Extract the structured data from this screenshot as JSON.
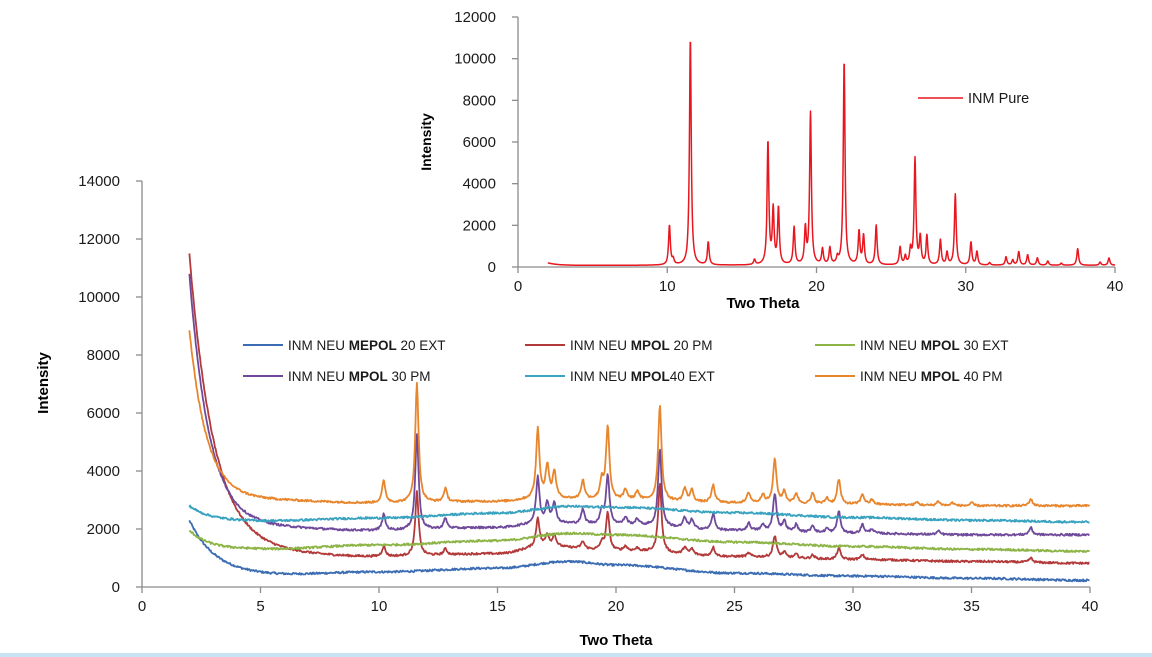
{
  "chart_data": [
    {
      "id": "main",
      "type": "line",
      "title": "",
      "xlabel": "Two Theta",
      "ylabel": "Intensity",
      "xlim": [
        0,
        40
      ],
      "ylim": [
        0,
        14000
      ],
      "xticks": [
        0,
        5,
        10,
        15,
        20,
        25,
        30,
        35,
        40
      ],
      "yticks": [
        0,
        2000,
        4000,
        6000,
        8000,
        10000,
        12000,
        14000
      ],
      "grid": false,
      "legend_placement": "top-center (3 columns, 2 rows)",
      "x_start": 2,
      "x_end": 40,
      "series": [
        {
          "name": "INM NEU MEPOL 20 EXT",
          "name_plain": "INM NEU ",
          "name_bold": "MEPOL",
          "name_tail": " 20 EXT",
          "color": "#3c6db3",
          "start_value": 2300,
          "decay_amplitude": 1900,
          "decay_rate": 1.1,
          "baseline_points": [
            [
              2,
              400
            ],
            [
              5,
              400
            ],
            [
              10,
              520
            ],
            [
              15,
              650
            ],
            [
              18,
              880
            ],
            [
              20,
              760
            ],
            [
              25,
              480
            ],
            [
              30,
              380
            ],
            [
              35,
              300
            ],
            [
              40,
              230
            ]
          ],
          "peaks": []
        },
        {
          "name": "INM NEU MPOL 20 PM",
          "name_plain": "INM NEU ",
          "name_bold": "MPOL",
          "name_tail": " 20 PM",
          "color": "#b33a3a",
          "start_value": 11500,
          "decay_amplitude": 10400,
          "decay_rate": 1.05,
          "baseline_points": [
            [
              2,
              1100
            ],
            [
              5,
              1150
            ],
            [
              10,
              1050
            ],
            [
              15,
              1150
            ],
            [
              17,
              1400
            ],
            [
              20,
              1250
            ],
            [
              25,
              1050
            ],
            [
              30,
              950
            ],
            [
              35,
              880
            ],
            [
              40,
              820
            ]
          ],
          "peaks": [
            [
              10.2,
              350
            ],
            [
              11.6,
              2200
            ],
            [
              12.8,
              200
            ],
            [
              16.7,
              1000
            ],
            [
              17.1,
              400
            ],
            [
              17.4,
              400
            ],
            [
              18.6,
              250
            ],
            [
              19.4,
              250
            ],
            [
              19.65,
              1300
            ],
            [
              20.4,
              150
            ],
            [
              20.9,
              100
            ],
            [
              21.85,
              2400
            ],
            [
              22.9,
              250
            ],
            [
              23.2,
              200
            ],
            [
              24.1,
              300
            ],
            [
              25.6,
              120
            ],
            [
              26.7,
              750
            ],
            [
              27.1,
              180
            ],
            [
              27.6,
              130
            ],
            [
              28.3,
              120
            ],
            [
              29.4,
              380
            ],
            [
              30.4,
              160
            ],
            [
              37.5,
              150
            ]
          ]
        },
        {
          "name": "INM NEU MPOL 30 EXT",
          "name_plain": "INM NEU ",
          "name_bold": "MPOL",
          "name_tail": " 30 EXT",
          "color": "#8db447",
          "start_value": 1900,
          "decay_amplitude": 700,
          "decay_rate": 0.9,
          "baseline_points": [
            [
              2,
              1250
            ],
            [
              5,
              1300
            ],
            [
              10,
              1450
            ],
            [
              15,
              1600
            ],
            [
              18,
              1850
            ],
            [
              20,
              1800
            ],
            [
              25,
              1550
            ],
            [
              30,
              1400
            ],
            [
              35,
              1300
            ],
            [
              40,
              1230
            ]
          ],
          "peaks": []
        },
        {
          "name": "INM NEU MPOL 30 PM",
          "name_plain": "INM NEU ",
          "name_bold": "MPOL",
          "name_tail": " 30 PM",
          "color": "#6f4a9a",
          "start_value": 10800,
          "decay_amplitude": 8800,
          "decay_rate": 0.85,
          "baseline_points": [
            [
              2,
              2000
            ],
            [
              5,
              2050
            ],
            [
              10,
              1950
            ],
            [
              15,
              2050
            ],
            [
              17,
              2200
            ],
            [
              20,
              2150
            ],
            [
              25,
              1950
            ],
            [
              30,
              1850
            ],
            [
              35,
              1800
            ],
            [
              40,
              1800
            ]
          ],
          "peaks": [
            [
              10.2,
              550
            ],
            [
              11.6,
              3300
            ],
            [
              12.8,
              350
            ],
            [
              16.7,
              1600
            ],
            [
              17.1,
              700
            ],
            [
              17.4,
              700
            ],
            [
              18.6,
              500
            ],
            [
              19.4,
              450
            ],
            [
              19.65,
              1700
            ],
            [
              20.4,
              250
            ],
            [
              20.9,
              200
            ],
            [
              21.85,
              2700
            ],
            [
              22.9,
              350
            ],
            [
              23.2,
              300
            ],
            [
              24.1,
              550
            ],
            [
              25.6,
              250
            ],
            [
              26.2,
              200
            ],
            [
              26.7,
              1300
            ],
            [
              27.1,
              350
            ],
            [
              27.6,
              250
            ],
            [
              28.3,
              250
            ],
            [
              28.9,
              150
            ],
            [
              29.4,
              750
            ],
            [
              30.4,
              300
            ],
            [
              30.8,
              150
            ],
            [
              33.6,
              120
            ],
            [
              37.5,
              250
            ]
          ]
        },
        {
          "name": "INM NEU MPOL40 EXT",
          "name_plain": "INM NEU ",
          "name_bold": "MPOL",
          "name_tail": "40 EXT",
          "color": "#3aa3bf",
          "start_value": 2750,
          "decay_amplitude": 500,
          "decay_rate": 0.8,
          "baseline_points": [
            [
              2,
              2300
            ],
            [
              5,
              2280
            ],
            [
              10,
              2380
            ],
            [
              15,
              2550
            ],
            [
              18,
              2780
            ],
            [
              20,
              2750
            ],
            [
              25,
              2560
            ],
            [
              30,
              2400
            ],
            [
              35,
              2300
            ],
            [
              40,
              2240
            ]
          ],
          "peaks": []
        },
        {
          "name": "INM NEU MPOL 40 PM",
          "name_plain": "INM NEU ",
          "name_bold": "MPOL",
          "name_tail": " 40 PM",
          "color": "#e8862e",
          "start_value": 8850,
          "decay_amplitude": 5900,
          "decay_rate": 0.75,
          "baseline_points": [
            [
              2,
              2950
            ],
            [
              5,
              3000
            ],
            [
              10,
              2900
            ],
            [
              15,
              2950
            ],
            [
              17,
              3050
            ],
            [
              20,
              3000
            ],
            [
              25,
              2900
            ],
            [
              30,
              2850
            ],
            [
              35,
              2800
            ],
            [
              40,
              2800
            ]
          ],
          "peaks": [
            [
              10.2,
              750
            ],
            [
              11.6,
              4100
            ],
            [
              12.8,
              450
            ],
            [
              16.7,
              2400
            ],
            [
              17.1,
              1100
            ],
            [
              17.4,
              900
            ],
            [
              18.6,
              650
            ],
            [
              19.4,
              650
            ],
            [
              19.65,
              2500
            ],
            [
              20.4,
              350
            ],
            [
              20.9,
              300
            ],
            [
              21.85,
              3300
            ],
            [
              22.9,
              450
            ],
            [
              23.2,
              400
            ],
            [
              24.1,
              600
            ],
            [
              25.6,
              350
            ],
            [
              26.2,
              300
            ],
            [
              26.7,
              1500
            ],
            [
              27.1,
              400
            ],
            [
              27.6,
              350
            ],
            [
              28.3,
              350
            ],
            [
              28.9,
              200
            ],
            [
              29.4,
              850
            ],
            [
              30.4,
              350
            ],
            [
              30.8,
              150
            ],
            [
              32.7,
              100
            ],
            [
              33.6,
              150
            ],
            [
              34.2,
              100
            ],
            [
              35.0,
              100
            ],
            [
              37.5,
              230
            ]
          ]
        }
      ]
    },
    {
      "id": "inset",
      "type": "line",
      "title": "",
      "xlabel": "Two Theta",
      "ylabel": "Intensity",
      "xlim": [
        0,
        40
      ],
      "ylim": [
        0,
        12000
      ],
      "xticks": [
        0,
        10,
        20,
        30,
        40
      ],
      "yticks": [
        0,
        2000,
        4000,
        6000,
        8000,
        10000,
        12000
      ],
      "grid": false,
      "legend_placement": "top-right",
      "x_start": 2,
      "x_end": 40,
      "series": [
        {
          "name": "INM Pure",
          "color": "#e8161e",
          "baseline": 80,
          "start_value": 200,
          "peaks": [
            [
              10.15,
              1900
            ],
            [
              10.4,
              250
            ],
            [
              11.55,
              10900
            ],
            [
              12.75,
              1100
            ],
            [
              15.85,
              250
            ],
            [
              16.75,
              5900
            ],
            [
              17.1,
              2600
            ],
            [
              17.45,
              2700
            ],
            [
              18.5,
              1800
            ],
            [
              19.25,
              1700
            ],
            [
              19.6,
              7300
            ],
            [
              20.4,
              750
            ],
            [
              20.9,
              800
            ],
            [
              21.4,
              300
            ],
            [
              21.85,
              9800
            ],
            [
              22.85,
              1600
            ],
            [
              23.15,
              1400
            ],
            [
              24.0,
              1900
            ],
            [
              25.6,
              850
            ],
            [
              25.95,
              400
            ],
            [
              26.3,
              700
            ],
            [
              26.6,
              5100
            ],
            [
              26.95,
              1300
            ],
            [
              27.4,
              1400
            ],
            [
              28.3,
              1200
            ],
            [
              28.75,
              600
            ],
            [
              29.3,
              3400
            ],
            [
              30.35,
              1100
            ],
            [
              30.75,
              650
            ],
            [
              31.6,
              120
            ],
            [
              32.7,
              400
            ],
            [
              33.15,
              250
            ],
            [
              33.55,
              650
            ],
            [
              34.15,
              500
            ],
            [
              34.8,
              350
            ],
            [
              35.5,
              200
            ],
            [
              36.4,
              100
            ],
            [
              37.5,
              800
            ],
            [
              39.0,
              150
            ],
            [
              39.6,
              350
            ]
          ]
        }
      ]
    }
  ]
}
